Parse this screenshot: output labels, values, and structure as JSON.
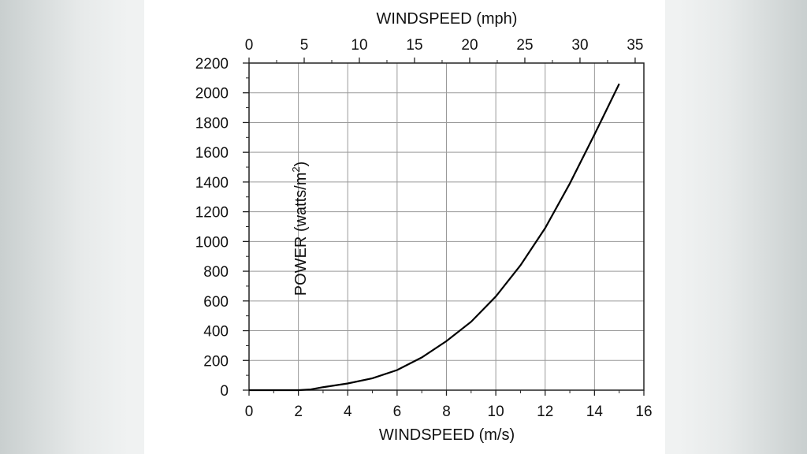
{
  "chart_data": {
    "type": "line",
    "xlabel": "WINDSPEED (m/s)",
    "x2label": "WINDSPEED (mph)",
    "ylabel_main": "POWER (watts/m",
    "ylabel_sup": "2",
    "ylabel_end": ")",
    "xlim": [
      0,
      16
    ],
    "ylim": [
      0,
      2200
    ],
    "x2lim": [
      0,
      35.79
    ],
    "xticks": [
      "0",
      "2",
      "4",
      "6",
      "8",
      "10",
      "12",
      "14",
      "16"
    ],
    "yticks": [
      "0",
      "200",
      "400",
      "600",
      "800",
      "1000",
      "1200",
      "1400",
      "1600",
      "1800",
      "2000",
      "2200"
    ],
    "x2ticks": [
      "0",
      "5",
      "10",
      "15",
      "20",
      "25",
      "30",
      "35"
    ],
    "grid": true,
    "series": [
      {
        "x": [
          2.0,
          2.5,
          3.0,
          4.0,
          5.0,
          6.0,
          7.0,
          8.0,
          9.0,
          10.0,
          11.0,
          12.0,
          13.0,
          14.0,
          15.0
        ],
        "y": [
          0,
          5,
          20,
          45,
          80,
          135,
          220,
          330,
          460,
          630,
          840,
          1090,
          1390,
          1720,
          2060
        ]
      }
    ]
  }
}
